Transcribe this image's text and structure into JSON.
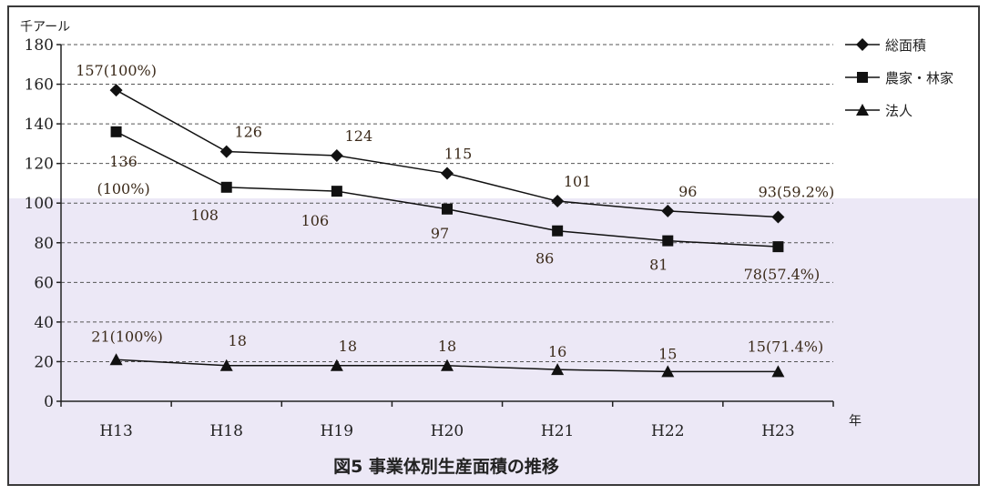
{
  "chart_data": {
    "type": "line",
    "title": "図5 事業体別生産面積の推移",
    "ylabel": "千アール",
    "xlabel": "年",
    "categories": [
      "H13",
      "H18",
      "H19",
      "H20",
      "H21",
      "H22",
      "H23"
    ],
    "ylim": [
      0,
      180
    ],
    "yticks": [
      0,
      20,
      40,
      60,
      80,
      100,
      120,
      140,
      160,
      180
    ],
    "grid": true,
    "legend_position": "top-right",
    "series": [
      {
        "name": "総面積",
        "marker": "diamond",
        "values": [
          157,
          126,
          124,
          115,
          101,
          96,
          93
        ],
        "labels": [
          "157(100%)",
          "126",
          "124",
          "115",
          "101",
          "96",
          "93(59.2%)"
        ]
      },
      {
        "name": "農家・林家",
        "marker": "square",
        "values": [
          136,
          108,
          106,
          97,
          86,
          81,
          78
        ],
        "labels": [
          "136\n(100%)",
          "108",
          "106",
          "97",
          "86",
          "81",
          "78(57.4%)"
        ]
      },
      {
        "name": "法人",
        "marker": "triangle",
        "values": [
          21,
          18,
          18,
          18,
          16,
          15,
          15
        ],
        "labels": [
          "21(100%)",
          "18",
          "18",
          "18",
          "16",
          "15",
          "15(71.4%)"
        ]
      }
    ]
  },
  "colors": {
    "line": "#111111",
    "grid": "#555555",
    "label": "#3b2a1a"
  }
}
